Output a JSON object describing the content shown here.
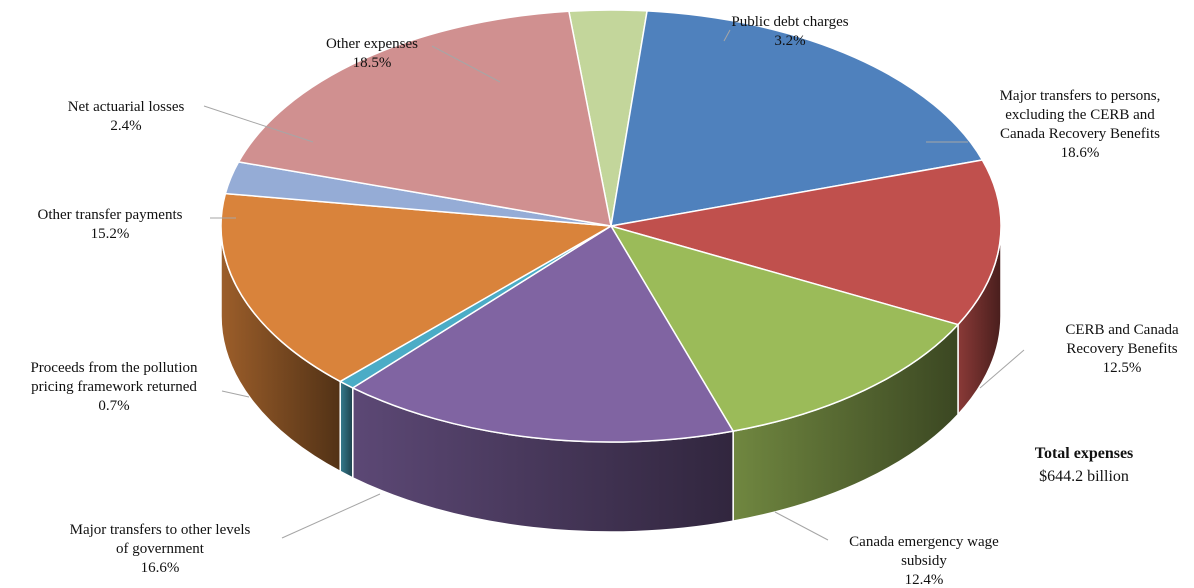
{
  "chart_data": {
    "type": "pie",
    "style": "3d",
    "slices": [
      {
        "label_lines": [
          "Public debt charges"
        ],
        "value": 3.2,
        "value_label": "3.2%",
        "color": "#c3d69b"
      },
      {
        "label_lines": [
          "Major transfers to persons,",
          "excluding the CERB and",
          "Canada Recovery Benefits"
        ],
        "value": 18.6,
        "value_label": "18.6%",
        "color": "#4f81bd"
      },
      {
        "label_lines": [
          "CERB and Canada",
          "Recovery Benefits"
        ],
        "value": 12.5,
        "value_label": "12.5%",
        "color": "#c0504d"
      },
      {
        "label_lines": [
          "Canada emergency wage",
          "subsidy"
        ],
        "value": 12.4,
        "value_label": "12.4%",
        "color": "#9bbb59"
      },
      {
        "label_lines": [
          "Major transfers to other levels",
          "of government"
        ],
        "value": 16.6,
        "value_label": "16.6%",
        "color": "#8064a2"
      },
      {
        "label_lines": [
          "Proceeds from the pollution",
          "pricing framework returned"
        ],
        "value": 0.7,
        "value_label": "0.7%",
        "color": "#4bacc6"
      },
      {
        "label_lines": [
          "Other transfer payments"
        ],
        "value": 15.2,
        "value_label": "15.2%",
        "color": "#d9833b"
      },
      {
        "label_lines": [
          "Net actuarial losses"
        ],
        "value": 2.4,
        "value_label": "2.4%",
        "color": "#95acd6"
      },
      {
        "label_lines": [
          "Other expenses"
        ],
        "value": 18.5,
        "value_label": "18.5%",
        "color": "#d09090"
      }
    ],
    "total": {
      "title": "Total expenses",
      "value": "$644.2 billion"
    }
  }
}
